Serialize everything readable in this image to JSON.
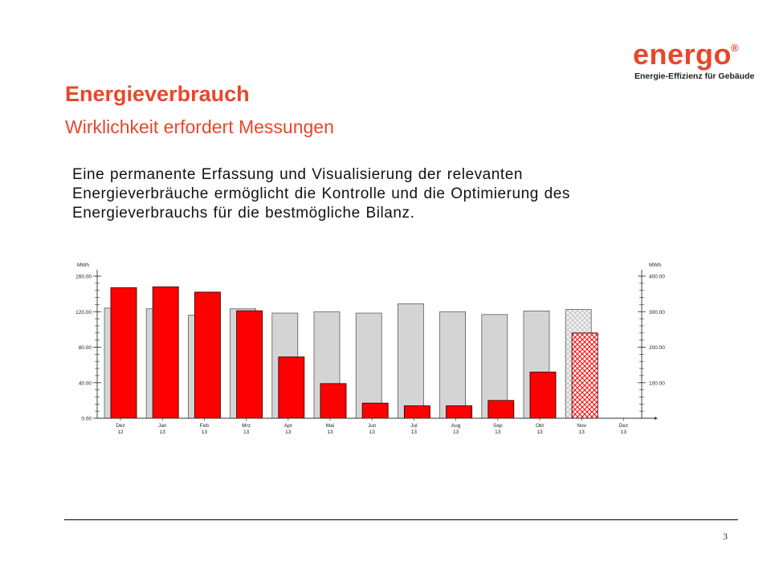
{
  "brand": {
    "name": "energo",
    "registered_mark": "®",
    "tagline": "Energie-Effizienz für Gebäude",
    "color": "#e8472b"
  },
  "slide": {
    "title": "Energieverbrauch",
    "subtitle": "Wirklichkeit erfordert Messungen",
    "body": "Eine permanente Erfassung und Visualisierung der relevanten Energieverbräuche ermöglicht die Kontrolle und die Optimierung des Energieverbrauchs für die bestmögliche Bilanz.",
    "page_number": "3"
  },
  "chart_data": {
    "type": "bar",
    "categories": [
      [
        "Dez",
        "12"
      ],
      [
        "Jan",
        "13"
      ],
      [
        "Feb",
        "13"
      ],
      [
        "Mrz",
        "13"
      ],
      [
        "Apr",
        "13"
      ],
      [
        "Mai",
        "13"
      ],
      [
        "Jun",
        "13"
      ],
      [
        "Jul",
        "13"
      ],
      [
        "Aug",
        "13"
      ],
      [
        "Sep",
        "13"
      ],
      [
        "Okt",
        "13"
      ],
      [
        "Nov",
        "13"
      ],
      [
        "Dez",
        "13"
      ]
    ],
    "series": [
      {
        "axis": "right",
        "color": "#d4d4d4",
        "values": [
          310,
          308,
          290,
          308,
          296,
          300,
          296,
          322,
          300,
          292,
          302,
          306,
          null
        ],
        "hatched_from_index": 11
      },
      {
        "axis": "left",
        "color": "#ff0000",
        "values": [
          147,
          148,
          142,
          121,
          69,
          39,
          17,
          14,
          14,
          20,
          52,
          96,
          null
        ],
        "hatched_from_index": 11
      }
    ],
    "left_axis": {
      "unit": "MWh",
      "ylim": [
        0,
        160
      ],
      "ticks": [
        "0.00",
        "40.00",
        "80.00",
        "120.00",
        "160.00"
      ]
    },
    "right_axis": {
      "unit": "MWh",
      "ylim": [
        0,
        400
      ],
      "ticks": [
        "100.00",
        "200.00",
        "300.00",
        "400.00"
      ]
    },
    "grid": false,
    "legend": "none"
  }
}
